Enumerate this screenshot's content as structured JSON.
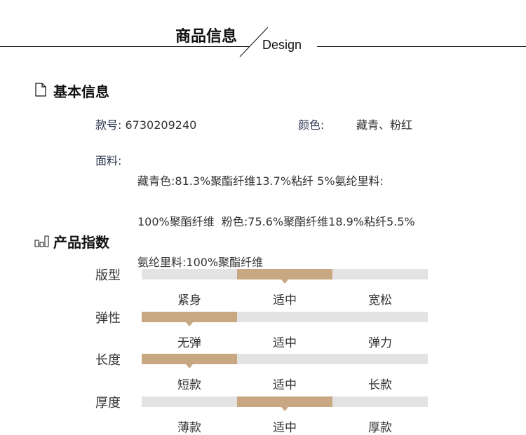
{
  "header": {
    "title": "商品信息",
    "subtitle": "Design"
  },
  "basic": {
    "heading": "基本信息",
    "style_label": "款号:",
    "style_value": "6730209240",
    "color_label": "颜色:",
    "color_value": "藏青、粉红",
    "fabric_label": "面料:",
    "fabric_lines": [
      "藏青色:81.3%聚酯纤维13.7%粘纤 5%氨纶里料:",
      "100%聚酯纤维  粉色:75.6%聚酯纤维18.9%粘纤5.5%",
      "氨纶里料:100%聚酯纤维"
    ]
  },
  "index": {
    "heading": "产品指数",
    "accent": "#c8a882",
    "track": "#e3e3e3",
    "rows": [
      {
        "label": "版型",
        "options": [
          "紧身",
          "适中",
          "宽松"
        ],
        "selected": 1
      },
      {
        "label": "弹性",
        "options": [
          "无弹",
          "适中",
          "弹力"
        ],
        "selected": 0
      },
      {
        "label": "长度",
        "options": [
          "短款",
          "适中",
          "长款"
        ],
        "selected": 0
      },
      {
        "label": "厚度",
        "options": [
          "薄款",
          "适中",
          "厚款"
        ],
        "selected": 1
      }
    ]
  }
}
